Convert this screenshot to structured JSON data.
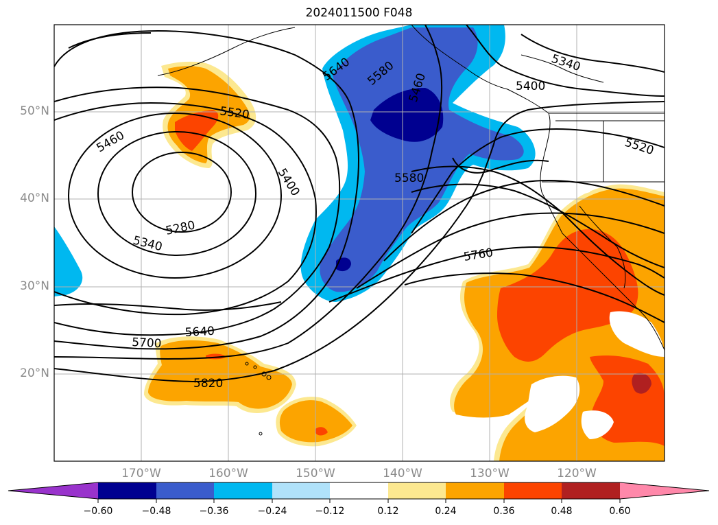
{
  "title": "2024011500 F048",
  "lat_labels": [
    "50°N",
    "40°N",
    "30°N",
    "20°N"
  ],
  "lon_labels": [
    "170°W",
    "160°W",
    "150°W",
    "140°W",
    "130°W",
    "120°W"
  ],
  "contour_labels": [
    "5280",
    "5340",
    "5400",
    "5460",
    "5520",
    "5580",
    "5640",
    "5700",
    "5760",
    "5820",
    "5460",
    "5520",
    "5580",
    "5640",
    "5340",
    "5400",
    "5520"
  ],
  "colorbar": {
    "ticks": [
      "−0.60",
      "−0.48",
      "−0.36",
      "−0.24",
      "−0.12",
      "0.12",
      "0.24",
      "0.36",
      "0.48",
      "0.60"
    ],
    "colors": [
      "#9933cc",
      "#000090",
      "#3a5ccc",
      "#00b8f0",
      "#b0e2fa",
      "#ffffff",
      "#fce890",
      "#fca400",
      "#fc4400",
      "#b02020",
      "#ff88aa"
    ]
  }
}
